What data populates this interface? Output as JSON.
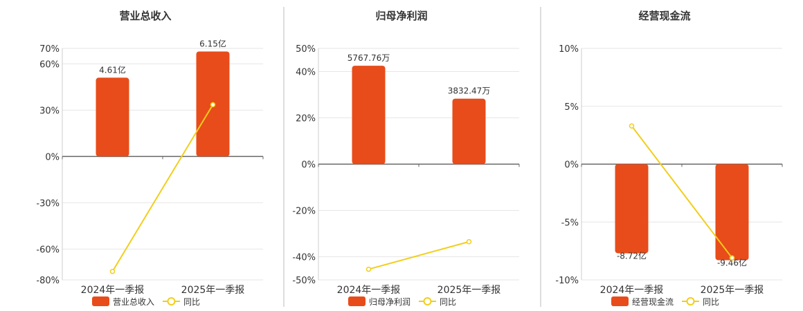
{
  "colors": {
    "bar": "#E84C1A",
    "line": "#F2CE1A",
    "grid": "#E6E6E6",
    "axis": "#666666",
    "divider": "#BBBBBB"
  },
  "chart_data": [
    {
      "type": "bar",
      "title": "营业总收入",
      "categories": [
        "2024年一季报",
        "2025年一季报"
      ],
      "ylim": [
        -80,
        70
      ],
      "yticks": [
        70,
        60,
        30,
        0,
        -30,
        -60,
        -80
      ],
      "ytick_labels": [
        "70%",
        "60%",
        "30%",
        "0%",
        "-30%",
        "-60%",
        "-80%"
      ],
      "series": [
        {
          "name": "营业总收入",
          "kind": "bar",
          "values": [
            51,
            68
          ],
          "labels": [
            "4.61亿",
            "6.15亿"
          ]
        },
        {
          "name": "同比",
          "kind": "line",
          "values": [
            -74.5,
            33.5
          ]
        }
      ],
      "legend": "bottom",
      "grid": true
    },
    {
      "type": "bar",
      "title": "归母净利润",
      "categories": [
        "2024年一季报",
        "2025年一季报"
      ],
      "ylim": [
        -50,
        50
      ],
      "yticks": [
        50,
        40,
        20,
        0,
        -20,
        -40,
        -50
      ],
      "ytick_labels": [
        "50%",
        "40%",
        "20%",
        "0%",
        "-20%",
        "-40%",
        "-50%"
      ],
      "series": [
        {
          "name": "归母净利润",
          "kind": "bar",
          "values": [
            42.5,
            28.3
          ],
          "labels": [
            "5767.76万",
            "3832.47万"
          ]
        },
        {
          "name": "同比",
          "kind": "line",
          "values": [
            -45.4,
            -33.5
          ]
        }
      ],
      "legend": "bottom",
      "grid": true
    },
    {
      "type": "bar",
      "title": "经营现金流",
      "categories": [
        "2024年一季报",
        "2025年一季报"
      ],
      "ylim": [
        -10,
        10
      ],
      "yticks": [
        10,
        5,
        0,
        -5,
        -10
      ],
      "ytick_labels": [
        "10%",
        "5%",
        "0%",
        "-5%",
        "-10%"
      ],
      "series": [
        {
          "name": "经营现金流",
          "kind": "bar",
          "values": [
            -7.7,
            -8.3
          ],
          "labels": [
            "-8.72亿",
            "-9.46亿"
          ]
        },
        {
          "name": "同比",
          "kind": "line",
          "values": [
            3.3,
            -8.1
          ]
        }
      ],
      "legend": "bottom",
      "grid": true
    }
  ]
}
